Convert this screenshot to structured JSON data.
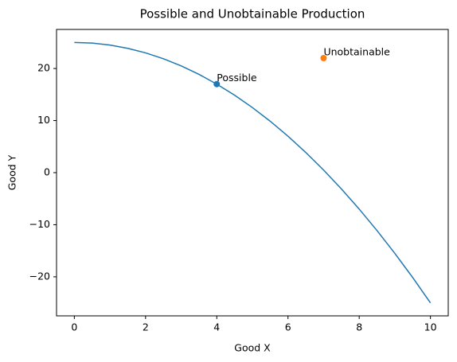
{
  "chart_data": {
    "type": "line",
    "title": "Possible and Unobtainable Production",
    "xlabel": "Good X",
    "ylabel": "Good Y",
    "series": [
      {
        "color": "#1f77b4",
        "x": [
          0,
          0.5,
          1,
          1.5,
          2,
          2.5,
          3,
          3.5,
          4,
          4.5,
          5,
          5.5,
          6,
          6.5,
          7,
          7.5,
          8,
          8.5,
          9,
          9.5,
          10
        ],
        "values": [
          25,
          24.875,
          24.5,
          23.875,
          23,
          21.875,
          20.5,
          18.875,
          17,
          14.875,
          12.5,
          9.875,
          7,
          3.875,
          0.5,
          -3.125,
          -7,
          -11.125,
          -15.5,
          -20.125,
          -25
        ]
      }
    ],
    "points": [
      {
        "label": "Possible",
        "x": 4,
        "y": 17,
        "color": "#1f77b4"
      },
      {
        "label": "Unobtainable",
        "x": 7,
        "y": 22,
        "color": "#ff7f0e"
      }
    ],
    "xlim": [
      -0.5,
      10.5
    ],
    "xticks": [
      0,
      2,
      4,
      6,
      8,
      10
    ],
    "ylim": [
      -27.5,
      27.5
    ],
    "yticks": [
      {
        "value": -20,
        "label": "−20"
      },
      {
        "value": -10,
        "label": "−10"
      },
      0,
      10,
      20
    ],
    "grid": false
  }
}
